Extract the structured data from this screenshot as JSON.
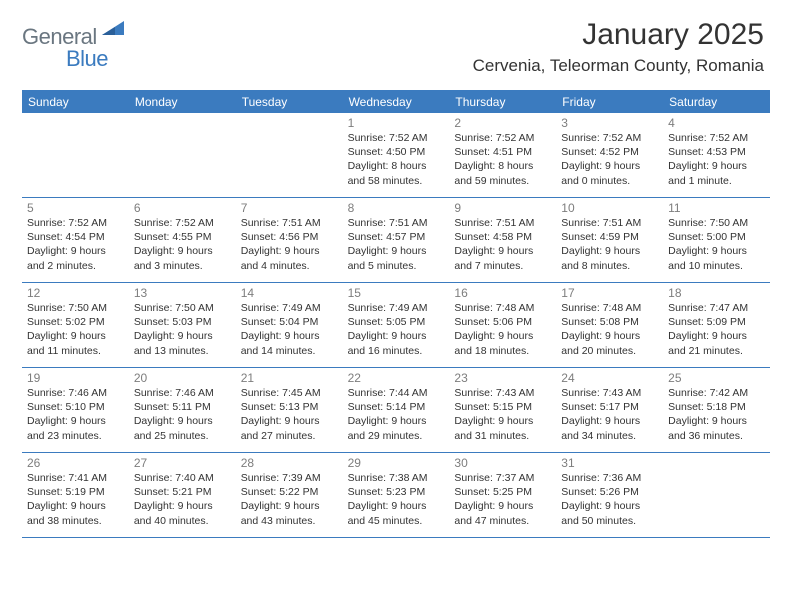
{
  "colors": {
    "brand_blue": "#3b7bbf",
    "logo_grey": "#6a7680",
    "text": "#333333",
    "day_num": "#7d7d7d",
    "background": "#ffffff"
  },
  "typography": {
    "title_fontsize": 30,
    "location_fontsize": 17,
    "logo_fontsize": 22,
    "weekday_fontsize": 12,
    "daynum_fontsize": 12,
    "cell_fontsize": 10.5
  },
  "logo": {
    "text_main": "General",
    "text_sub": "Blue"
  },
  "header": {
    "title": "January 2025",
    "location": "Cervenia, Teleorman County, Romania"
  },
  "weekdays": [
    "Sunday",
    "Monday",
    "Tuesday",
    "Wednesday",
    "Thursday",
    "Friday",
    "Saturday"
  ],
  "weeks": [
    [
      {
        "n": "",
        "sr": "",
        "ss": "",
        "dl1": "",
        "dl2": ""
      },
      {
        "n": "",
        "sr": "",
        "ss": "",
        "dl1": "",
        "dl2": ""
      },
      {
        "n": "",
        "sr": "",
        "ss": "",
        "dl1": "",
        "dl2": ""
      },
      {
        "n": "1",
        "sr": "Sunrise: 7:52 AM",
        "ss": "Sunset: 4:50 PM",
        "dl1": "Daylight: 8 hours",
        "dl2": "and 58 minutes."
      },
      {
        "n": "2",
        "sr": "Sunrise: 7:52 AM",
        "ss": "Sunset: 4:51 PM",
        "dl1": "Daylight: 8 hours",
        "dl2": "and 59 minutes."
      },
      {
        "n": "3",
        "sr": "Sunrise: 7:52 AM",
        "ss": "Sunset: 4:52 PM",
        "dl1": "Daylight: 9 hours",
        "dl2": "and 0 minutes."
      },
      {
        "n": "4",
        "sr": "Sunrise: 7:52 AM",
        "ss": "Sunset: 4:53 PM",
        "dl1": "Daylight: 9 hours",
        "dl2": "and 1 minute."
      }
    ],
    [
      {
        "n": "5",
        "sr": "Sunrise: 7:52 AM",
        "ss": "Sunset: 4:54 PM",
        "dl1": "Daylight: 9 hours",
        "dl2": "and 2 minutes."
      },
      {
        "n": "6",
        "sr": "Sunrise: 7:52 AM",
        "ss": "Sunset: 4:55 PM",
        "dl1": "Daylight: 9 hours",
        "dl2": "and 3 minutes."
      },
      {
        "n": "7",
        "sr": "Sunrise: 7:51 AM",
        "ss": "Sunset: 4:56 PM",
        "dl1": "Daylight: 9 hours",
        "dl2": "and 4 minutes."
      },
      {
        "n": "8",
        "sr": "Sunrise: 7:51 AM",
        "ss": "Sunset: 4:57 PM",
        "dl1": "Daylight: 9 hours",
        "dl2": "and 5 minutes."
      },
      {
        "n": "9",
        "sr": "Sunrise: 7:51 AM",
        "ss": "Sunset: 4:58 PM",
        "dl1": "Daylight: 9 hours",
        "dl2": "and 7 minutes."
      },
      {
        "n": "10",
        "sr": "Sunrise: 7:51 AM",
        "ss": "Sunset: 4:59 PM",
        "dl1": "Daylight: 9 hours",
        "dl2": "and 8 minutes."
      },
      {
        "n": "11",
        "sr": "Sunrise: 7:50 AM",
        "ss": "Sunset: 5:00 PM",
        "dl1": "Daylight: 9 hours",
        "dl2": "and 10 minutes."
      }
    ],
    [
      {
        "n": "12",
        "sr": "Sunrise: 7:50 AM",
        "ss": "Sunset: 5:02 PM",
        "dl1": "Daylight: 9 hours",
        "dl2": "and 11 minutes."
      },
      {
        "n": "13",
        "sr": "Sunrise: 7:50 AM",
        "ss": "Sunset: 5:03 PM",
        "dl1": "Daylight: 9 hours",
        "dl2": "and 13 minutes."
      },
      {
        "n": "14",
        "sr": "Sunrise: 7:49 AM",
        "ss": "Sunset: 5:04 PM",
        "dl1": "Daylight: 9 hours",
        "dl2": "and 14 minutes."
      },
      {
        "n": "15",
        "sr": "Sunrise: 7:49 AM",
        "ss": "Sunset: 5:05 PM",
        "dl1": "Daylight: 9 hours",
        "dl2": "and 16 minutes."
      },
      {
        "n": "16",
        "sr": "Sunrise: 7:48 AM",
        "ss": "Sunset: 5:06 PM",
        "dl1": "Daylight: 9 hours",
        "dl2": "and 18 minutes."
      },
      {
        "n": "17",
        "sr": "Sunrise: 7:48 AM",
        "ss": "Sunset: 5:08 PM",
        "dl1": "Daylight: 9 hours",
        "dl2": "and 20 minutes."
      },
      {
        "n": "18",
        "sr": "Sunrise: 7:47 AM",
        "ss": "Sunset: 5:09 PM",
        "dl1": "Daylight: 9 hours",
        "dl2": "and 21 minutes."
      }
    ],
    [
      {
        "n": "19",
        "sr": "Sunrise: 7:46 AM",
        "ss": "Sunset: 5:10 PM",
        "dl1": "Daylight: 9 hours",
        "dl2": "and 23 minutes."
      },
      {
        "n": "20",
        "sr": "Sunrise: 7:46 AM",
        "ss": "Sunset: 5:11 PM",
        "dl1": "Daylight: 9 hours",
        "dl2": "and 25 minutes."
      },
      {
        "n": "21",
        "sr": "Sunrise: 7:45 AM",
        "ss": "Sunset: 5:13 PM",
        "dl1": "Daylight: 9 hours",
        "dl2": "and 27 minutes."
      },
      {
        "n": "22",
        "sr": "Sunrise: 7:44 AM",
        "ss": "Sunset: 5:14 PM",
        "dl1": "Daylight: 9 hours",
        "dl2": "and 29 minutes."
      },
      {
        "n": "23",
        "sr": "Sunrise: 7:43 AM",
        "ss": "Sunset: 5:15 PM",
        "dl1": "Daylight: 9 hours",
        "dl2": "and 31 minutes."
      },
      {
        "n": "24",
        "sr": "Sunrise: 7:43 AM",
        "ss": "Sunset: 5:17 PM",
        "dl1": "Daylight: 9 hours",
        "dl2": "and 34 minutes."
      },
      {
        "n": "25",
        "sr": "Sunrise: 7:42 AM",
        "ss": "Sunset: 5:18 PM",
        "dl1": "Daylight: 9 hours",
        "dl2": "and 36 minutes."
      }
    ],
    [
      {
        "n": "26",
        "sr": "Sunrise: 7:41 AM",
        "ss": "Sunset: 5:19 PM",
        "dl1": "Daylight: 9 hours",
        "dl2": "and 38 minutes."
      },
      {
        "n": "27",
        "sr": "Sunrise: 7:40 AM",
        "ss": "Sunset: 5:21 PM",
        "dl1": "Daylight: 9 hours",
        "dl2": "and 40 minutes."
      },
      {
        "n": "28",
        "sr": "Sunrise: 7:39 AM",
        "ss": "Sunset: 5:22 PM",
        "dl1": "Daylight: 9 hours",
        "dl2": "and 43 minutes."
      },
      {
        "n": "29",
        "sr": "Sunrise: 7:38 AM",
        "ss": "Sunset: 5:23 PM",
        "dl1": "Daylight: 9 hours",
        "dl2": "and 45 minutes."
      },
      {
        "n": "30",
        "sr": "Sunrise: 7:37 AM",
        "ss": "Sunset: 5:25 PM",
        "dl1": "Daylight: 9 hours",
        "dl2": "and 47 minutes."
      },
      {
        "n": "31",
        "sr": "Sunrise: 7:36 AM",
        "ss": "Sunset: 5:26 PM",
        "dl1": "Daylight: 9 hours",
        "dl2": "and 50 minutes."
      },
      {
        "n": "",
        "sr": "",
        "ss": "",
        "dl1": "",
        "dl2": ""
      }
    ]
  ]
}
